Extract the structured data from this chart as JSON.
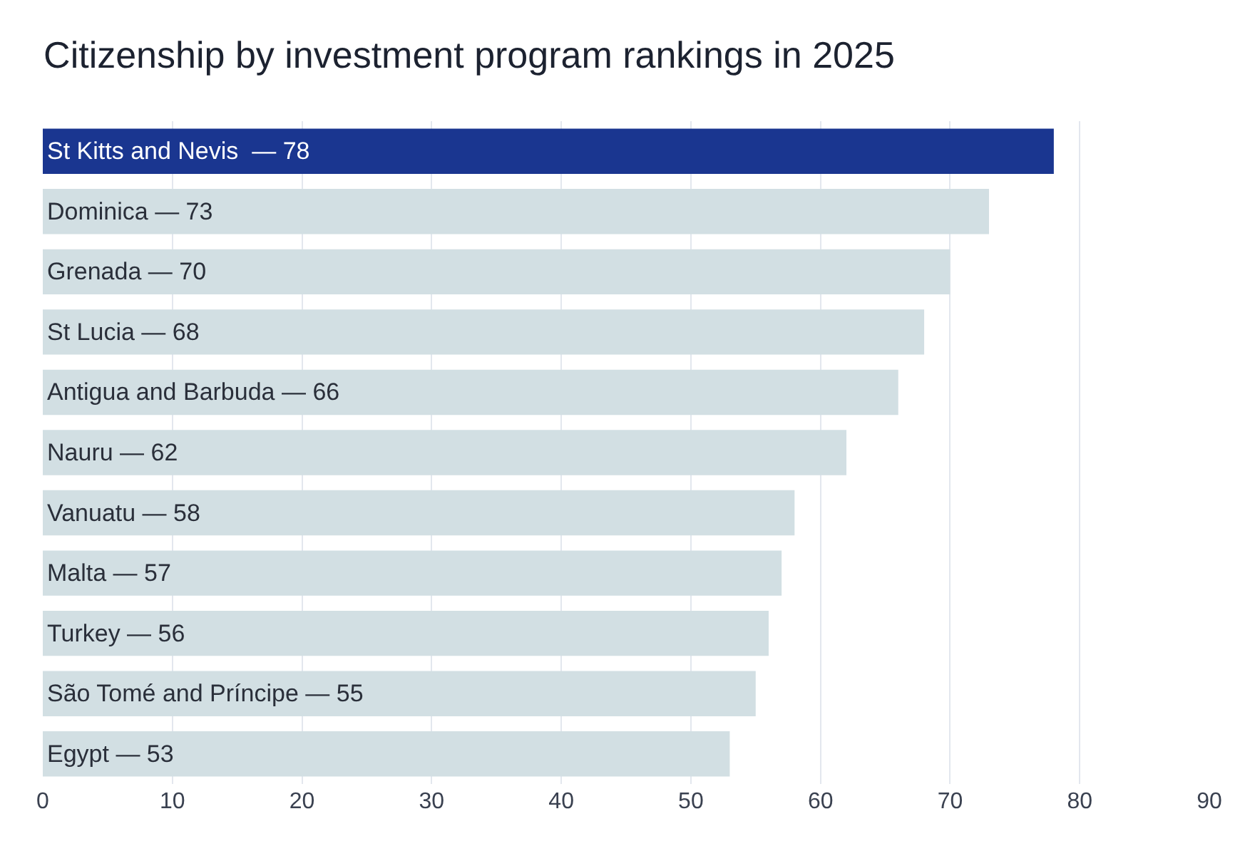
{
  "chart_data": {
    "type": "bar",
    "orientation": "horizontal",
    "title": "Citizenship by investment program rankings in 2025",
    "categories": [
      "St Kitts and Nevis  — 78",
      "Dominica — 73",
      "Grenada — 70",
      "St Lucia — 68",
      "Antigua and Barbuda — 66",
      "Nauru — 62",
      "Vanuatu — 58",
      "Malta — 57",
      "Turkey — 56",
      "São Tomé and Príncipe — 55",
      "Egypt — 53"
    ],
    "values": [
      78,
      73,
      70,
      68,
      66,
      62,
      58,
      57,
      56,
      55,
      53
    ],
    "colors": [
      "#1a3690",
      "#d2dfe3",
      "#d2dfe3",
      "#d2dfe3",
      "#d2dfe3",
      "#d2dfe3",
      "#d2dfe3",
      "#d2dfe3",
      "#d2dfe3",
      "#d2dfe3",
      "#d2dfe3"
    ],
    "xlim": [
      0,
      90
    ],
    "xticks": [
      0,
      10,
      20,
      30,
      40,
      50,
      60,
      70,
      80,
      90
    ],
    "grid": "x",
    "tick_labels": "x",
    "legend": false
  }
}
